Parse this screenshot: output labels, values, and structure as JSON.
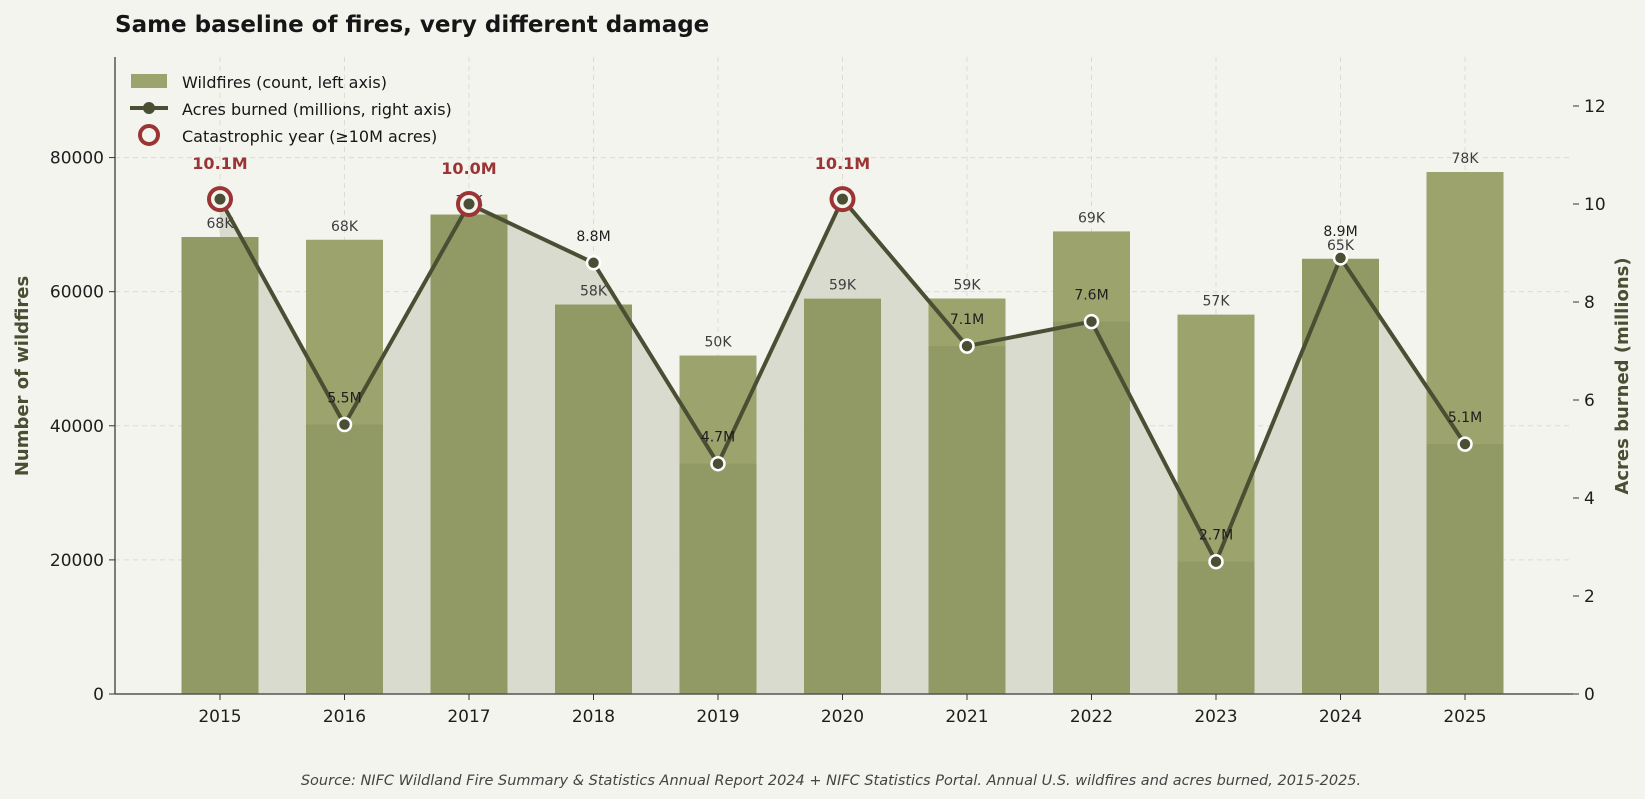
{
  "chart_data": {
    "type": "bar",
    "title": "Same baseline of fires, very different damage",
    "categories": [
      "2015",
      "2016",
      "2017",
      "2018",
      "2019",
      "2020",
      "2021",
      "2022",
      "2023",
      "2024",
      "2025"
    ],
    "series": [
      {
        "name": "Wildfires (count, left axis)",
        "type": "bar",
        "axis": "left",
        "values": [
          68151,
          67743,
          71499,
          58083,
          50477,
          58950,
          58985,
          68988,
          56580,
          64897,
          77850
        ],
        "labels": [
          "68K",
          "68K",
          "71K",
          "58K",
          "50K",
          "59K",
          "59K",
          "69K",
          "57K",
          "65K",
          "78K"
        ]
      },
      {
        "name": "Acres burned (millions, right axis)",
        "type": "line",
        "axis": "right",
        "values": [
          10.1,
          5.5,
          10.0,
          8.8,
          4.7,
          10.1,
          7.1,
          7.6,
          2.7,
          8.9,
          5.1
        ],
        "labels": [
          "10.1M",
          "5.5M",
          "10.0M",
          "8.8M",
          "4.7M",
          "10.1M",
          "7.1M",
          "7.6M",
          "2.7M",
          "8.9M",
          "5.1M"
        ]
      }
    ],
    "highlight": {
      "name": "Catastrophic year (≥10M acres)",
      "threshold": 10,
      "indices": [
        0,
        2,
        5
      ]
    },
    "ylabel": "Number of wildfires",
    "ylabel_right": "Acres burned (millions)",
    "ylim": [
      0,
      95000
    ],
    "ylim_right": [
      0,
      13
    ],
    "yticks": [
      0,
      20000,
      40000,
      60000,
      80000
    ],
    "yticks_right": [
      0,
      2,
      4,
      6,
      8,
      10,
      12
    ],
    "grid": true,
    "legend_position": "top-left",
    "source": "Source: NIFC Wildland Fire Summary & Statistics Annual Report 2024 + NIFC Statistics Portal. Annual U.S. wildfires and acres burned, 2015-2025.",
    "colors": {
      "background": "#f4f4ef",
      "bar": "#8f9964",
      "bar_light": "#9ca36d",
      "area": "#d7d9cb",
      "line": "#4a4f33",
      "highlight": "#9b3535",
      "grid": "#dcdcd4"
    }
  }
}
